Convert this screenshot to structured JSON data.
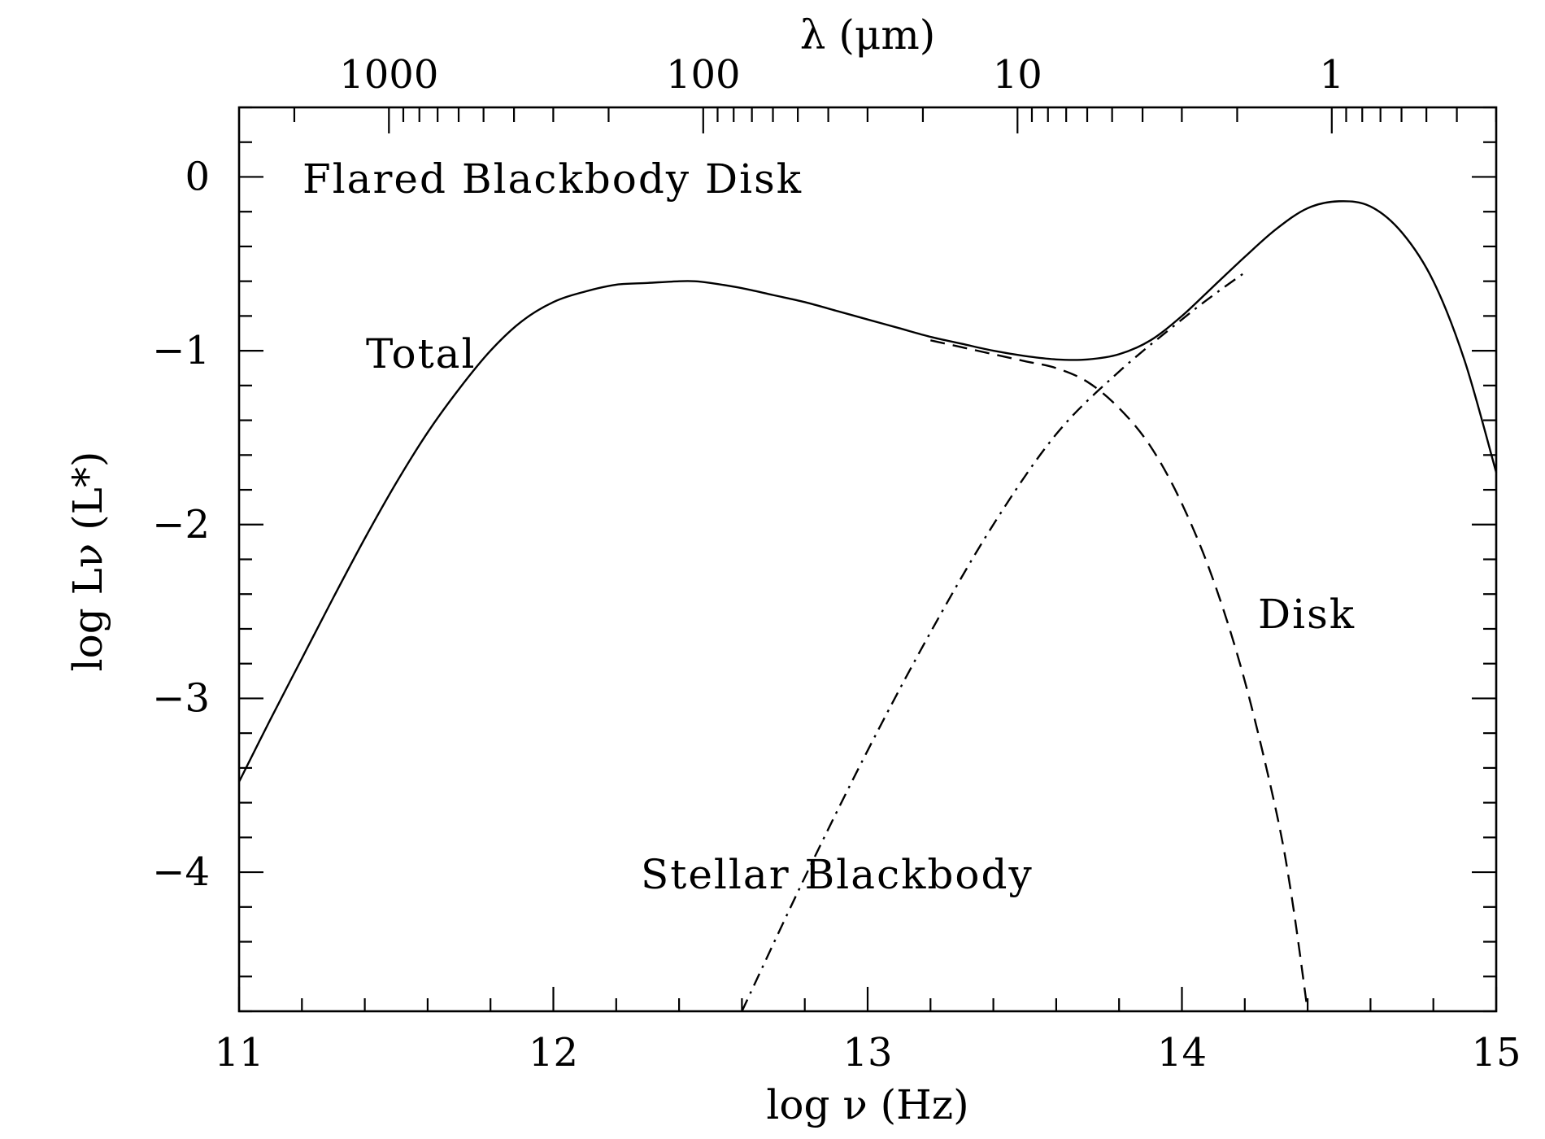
{
  "chart_data": {
    "type": "line",
    "annotations": {
      "title": "Flared Blackbody Disk",
      "total": "Total",
      "disk": "Disk",
      "star": "Stellar Blackbody"
    },
    "xlabel": "log ν (Hz)",
    "ylabel": "log Lν (L*)",
    "top_xlabel": "λ (μm)",
    "xlim": [
      11,
      15
    ],
    "ylim": [
      -4.8,
      0.4
    ],
    "x_ticks": [
      "11",
      "12",
      "13",
      "14",
      "15"
    ],
    "y_ticks": [
      "0",
      "−1",
      "−2",
      "−3",
      "−4"
    ],
    "top_ticks": [
      "1000",
      "100",
      "10",
      "1"
    ],
    "top_tick_values_um": [
      1000,
      100,
      10,
      1
    ],
    "grid": false,
    "series": [
      {
        "name": "Total",
        "line_style": "solid",
        "x": [
          11.0,
          11.1,
          11.2,
          11.3,
          11.4,
          11.5,
          11.6,
          11.7,
          11.8,
          11.9,
          12.0,
          12.1,
          12.2,
          12.3,
          12.4,
          12.45,
          12.5,
          12.6,
          12.7,
          12.8,
          12.9,
          13.0,
          13.1,
          13.2,
          13.3,
          13.4,
          13.5,
          13.6,
          13.7,
          13.8,
          13.9,
          14.0,
          14.1,
          14.2,
          14.3,
          14.4,
          14.5,
          14.6,
          14.7,
          14.8,
          14.9,
          15.0
        ],
        "y": [
          -3.48,
          -3.12,
          -2.77,
          -2.42,
          -2.08,
          -1.76,
          -1.47,
          -1.22,
          -1.0,
          -0.83,
          -0.72,
          -0.66,
          -0.62,
          -0.61,
          -0.6,
          -0.6,
          -0.61,
          -0.64,
          -0.68,
          -0.72,
          -0.77,
          -0.82,
          -0.87,
          -0.92,
          -0.96,
          -1.0,
          -1.03,
          -1.05,
          -1.05,
          -1.02,
          -0.94,
          -0.8,
          -0.63,
          -0.46,
          -0.3,
          -0.18,
          -0.14,
          -0.17,
          -0.32,
          -0.6,
          -1.06,
          -1.7
        ]
      },
      {
        "name": "Disk",
        "line_style": "dashed",
        "x": [
          13.2,
          13.3,
          13.4,
          13.5,
          13.6,
          13.7,
          13.8,
          13.9,
          14.0,
          14.1,
          14.2,
          14.3,
          14.35,
          14.4
        ],
        "y": [
          -0.94,
          -0.98,
          -1.02,
          -1.06,
          -1.1,
          -1.18,
          -1.33,
          -1.55,
          -1.88,
          -2.32,
          -2.9,
          -3.65,
          -4.15,
          -4.8
        ]
      },
      {
        "name": "Stellar Blackbody",
        "line_style": "dash-dot",
        "x": [
          12.6,
          12.8,
          13.0,
          13.2,
          13.4,
          13.6,
          13.8,
          14.0,
          14.1,
          14.2
        ],
        "y": [
          -4.8,
          -4.03,
          -3.3,
          -2.62,
          -2.0,
          -1.48,
          -1.12,
          -0.82,
          -0.68,
          -0.55
        ]
      }
    ]
  }
}
